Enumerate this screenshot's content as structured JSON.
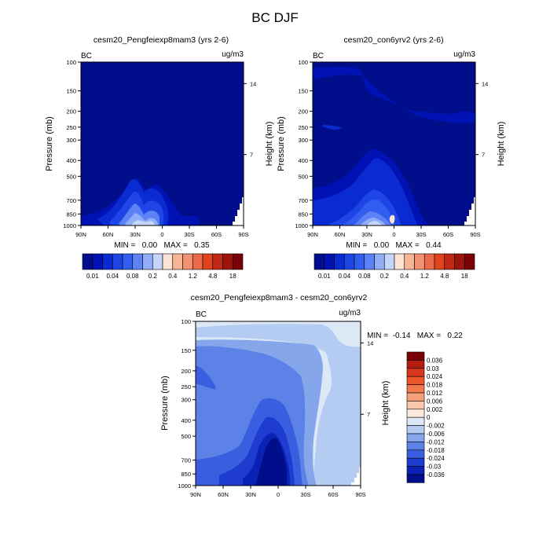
{
  "figure": {
    "title": "BC DJF"
  },
  "chart_data": [
    {
      "type": "heatmap",
      "title": "cesm20_Pengfeiexp8mam3 (yrs 2-6)",
      "left_label": "BC",
      "right_label": "ug/m3",
      "xlabel": "",
      "ylabel": "Pressure (mb)",
      "ylabel_right": "Height (km)",
      "x_ticks": [
        "90N",
        "60N",
        "30N",
        "0",
        "30S",
        "60S",
        "90S"
      ],
      "y_ticks": [
        "100",
        "150",
        "200",
        "250",
        "300",
        "400",
        "500",
        "700",
        "850",
        "1000"
      ],
      "y_right_ticks": [
        "14",
        "7"
      ],
      "stats": {
        "min": "0.00",
        "max": "0.35"
      },
      "stats_text": "MIN =   0.00   MAX =   0.35",
      "colorbar_labels": [
        "0.01",
        "0.04",
        "0.08",
        "0.2",
        "0.4",
        "1.2",
        "4.8",
        "18"
      ],
      "colorbar_colors": [
        "#000e8c",
        "#0012b4",
        "#0a2ad2",
        "#1e46e6",
        "#325ef0",
        "#5c82f5",
        "#90aef8",
        "#c4d6fb",
        "#fde3d6",
        "#f8b596",
        "#f29272",
        "#ec6a4a",
        "#e0441e",
        "#c02a14",
        "#9c140c",
        "#7a0008"
      ]
    },
    {
      "type": "heatmap",
      "title": "cesm20_con6yrv2 (yrs 2-6)",
      "left_label": "BC",
      "right_label": "ug/m3",
      "xlabel": "",
      "ylabel": "Pressure (mb)",
      "ylabel_right": "Height (km)",
      "x_ticks": [
        "90N",
        "60N",
        "30N",
        "0",
        "30S",
        "60S",
        "90S"
      ],
      "y_ticks": [
        "100",
        "150",
        "200",
        "250",
        "300",
        "400",
        "500",
        "700",
        "850",
        "1000"
      ],
      "y_right_ticks": [
        "14",
        "7"
      ],
      "stats": {
        "min": "0.00",
        "max": "0.44"
      },
      "stats_text": "MIN =   0.00   MAX =   0.44",
      "colorbar_labels": [
        "0.01",
        "0.04",
        "0.08",
        "0.2",
        "0.4",
        "1.2",
        "4.8",
        "18"
      ],
      "colorbar_colors": [
        "#000e8c",
        "#0012b4",
        "#0a2ad2",
        "#1e46e6",
        "#325ef0",
        "#5c82f5",
        "#90aef8",
        "#c4d6fb",
        "#fde3d6",
        "#f8b596",
        "#f29272",
        "#ec6a4a",
        "#e0441e",
        "#c02a14",
        "#9c140c",
        "#7a0008"
      ]
    },
    {
      "type": "heatmap",
      "title": "cesm20_Pengfeiexp8mam3 - cesm20_con6yrv2",
      "left_label": "BC",
      "right_label": "ug/m3",
      "xlabel": "",
      "ylabel": "Pressure (mb)",
      "ylabel_right": "Height (km)",
      "x_ticks": [
        "90N",
        "60N",
        "30N",
        "0",
        "30S",
        "60S",
        "90S"
      ],
      "y_ticks": [
        "100",
        "150",
        "200",
        "250",
        "300",
        "400",
        "500",
        "700",
        "850",
        "1000"
      ],
      "y_right_ticks": [
        "14",
        "7"
      ],
      "stats": {
        "min": "-0.14",
        "max": "0.22"
      },
      "stats_text": "MIN =  -0.14   MAX =   0.22",
      "colorbar_labels": [
        "0.036",
        "0.03",
        "0.024",
        "0.018",
        "0.012",
        "0.006",
        "0.002",
        "0",
        "-0.002",
        "-0.006",
        "-0.012",
        "-0.018",
        "-0.024",
        "-0.03",
        "-0.036"
      ],
      "colorbar_colors": [
        "#7a0008",
        "#b41e10",
        "#d6361c",
        "#ec5628",
        "#f17a4c",
        "#f4a07a",
        "#f9c8ac",
        "#fdeadf",
        "#dde8f7",
        "#b4cbf2",
        "#86a6ec",
        "#5c82e8",
        "#3a5ee0",
        "#1e3cd0",
        "#0a22b4",
        "#000e8c"
      ]
    }
  ]
}
